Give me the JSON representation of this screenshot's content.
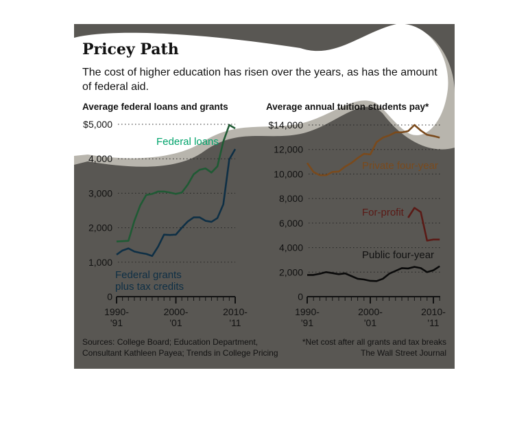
{
  "title": "Pricey Path",
  "subtitle": "The cost of higher education has risen over the years, as has the amount of federal aid.",
  "sources": "Sources: College Board; Education Department, Consultant Kathleen Payea; Trends in College Pricing",
  "footnote": "*Net cost after all grants and tax breaks",
  "credit": "The Wall Street Journal",
  "chart_data": [
    {
      "type": "line",
      "title": "Average federal loans and grants",
      "ylim": [
        0,
        5000
      ],
      "yticks": [
        "0",
        "1,000",
        "2,000",
        "3,000",
        "4,000",
        "$5,000"
      ],
      "ytick_values": [
        0,
        1000,
        2000,
        3000,
        4000,
        5000
      ],
      "xticks": [
        {
          "l1": "1990-",
          "l2": "'91",
          "year": 1990
        },
        {
          "l1": "2000-",
          "l2": "'01",
          "year": 2000
        },
        {
          "l1": "2010-",
          "l2": "'11",
          "year": 2010
        }
      ],
      "x": [
        1990,
        1991,
        1992,
        1993,
        1994,
        1995,
        1996,
        1997,
        1998,
        1999,
        2000,
        2001,
        2002,
        2003,
        2004,
        2005,
        2006,
        2007,
        2008,
        2009,
        2010
      ],
      "series": [
        {
          "name": "Federal loans",
          "color": "#1f5a34",
          "label_color": "#00a36b",
          "values": [
            1600,
            1610,
            1620,
            2200,
            2650,
            2950,
            2980,
            3050,
            3050,
            3020,
            2980,
            3020,
            3250,
            3550,
            3680,
            3720,
            3600,
            3780,
            4500,
            4980,
            4880
          ]
        },
        {
          "name": "Federal grants plus tax credits",
          "color": "#0e2f45",
          "label_color": "#0e2f45",
          "values": [
            1220,
            1340,
            1400,
            1310,
            1270,
            1240,
            1180,
            1450,
            1800,
            1790,
            1800,
            2000,
            2180,
            2300,
            2300,
            2200,
            2170,
            2280,
            2680,
            3980,
            4280
          ]
        }
      ]
    },
    {
      "type": "line",
      "title": "Average annual tuition students pay*",
      "ylim": [
        0,
        14000
      ],
      "yticks": [
        "0",
        "2,000",
        "4,000",
        "6,000",
        "8,000",
        "10,000",
        "12,000",
        "$14,000"
      ],
      "ytick_values": [
        0,
        2000,
        4000,
        6000,
        8000,
        10000,
        12000,
        14000
      ],
      "xticks": [
        {
          "l1": "1990-",
          "l2": "'91",
          "year": 1990
        },
        {
          "l1": "2000-",
          "l2": "'01",
          "year": 2000
        },
        {
          "l1": "2010-",
          "l2": "'11",
          "year": 2010
        }
      ],
      "x": [
        1990,
        1991,
        1992,
        1993,
        1994,
        1995,
        1996,
        1997,
        1998,
        1999,
        2000,
        2001,
        2002,
        2003,
        2004,
        2005,
        2006,
        2007,
        2008,
        2009,
        2010,
        2011
      ],
      "series": [
        {
          "name": "Private four-year",
          "color": "#7a4a1c",
          "label_color": "#7a4a1c",
          "values": [
            10900,
            10170,
            9900,
            9900,
            10170,
            10200,
            10600,
            10900,
            11300,
            11650,
            11600,
            12600,
            12970,
            13150,
            13400,
            13400,
            13500,
            14000,
            13550,
            13200,
            13100,
            12970
          ]
        },
        {
          "name": "For-profit",
          "color": "#5a1a16",
          "label_color": "#5a1a16",
          "x": [
            2006,
            2007,
            2008,
            2009,
            2010,
            2011
          ],
          "values": [
            6440,
            7240,
            6900,
            4570,
            4660,
            4660
          ]
        },
        {
          "name": "Public four-year",
          "color": "#0a0a0a",
          "label_color": "#111111",
          "values": [
            1770,
            1770,
            1870,
            2000,
            1920,
            1830,
            1900,
            1680,
            1460,
            1400,
            1290,
            1270,
            1460,
            1870,
            2100,
            2330,
            2300,
            2430,
            2330,
            2000,
            2150,
            2480
          ]
        }
      ]
    }
  ]
}
